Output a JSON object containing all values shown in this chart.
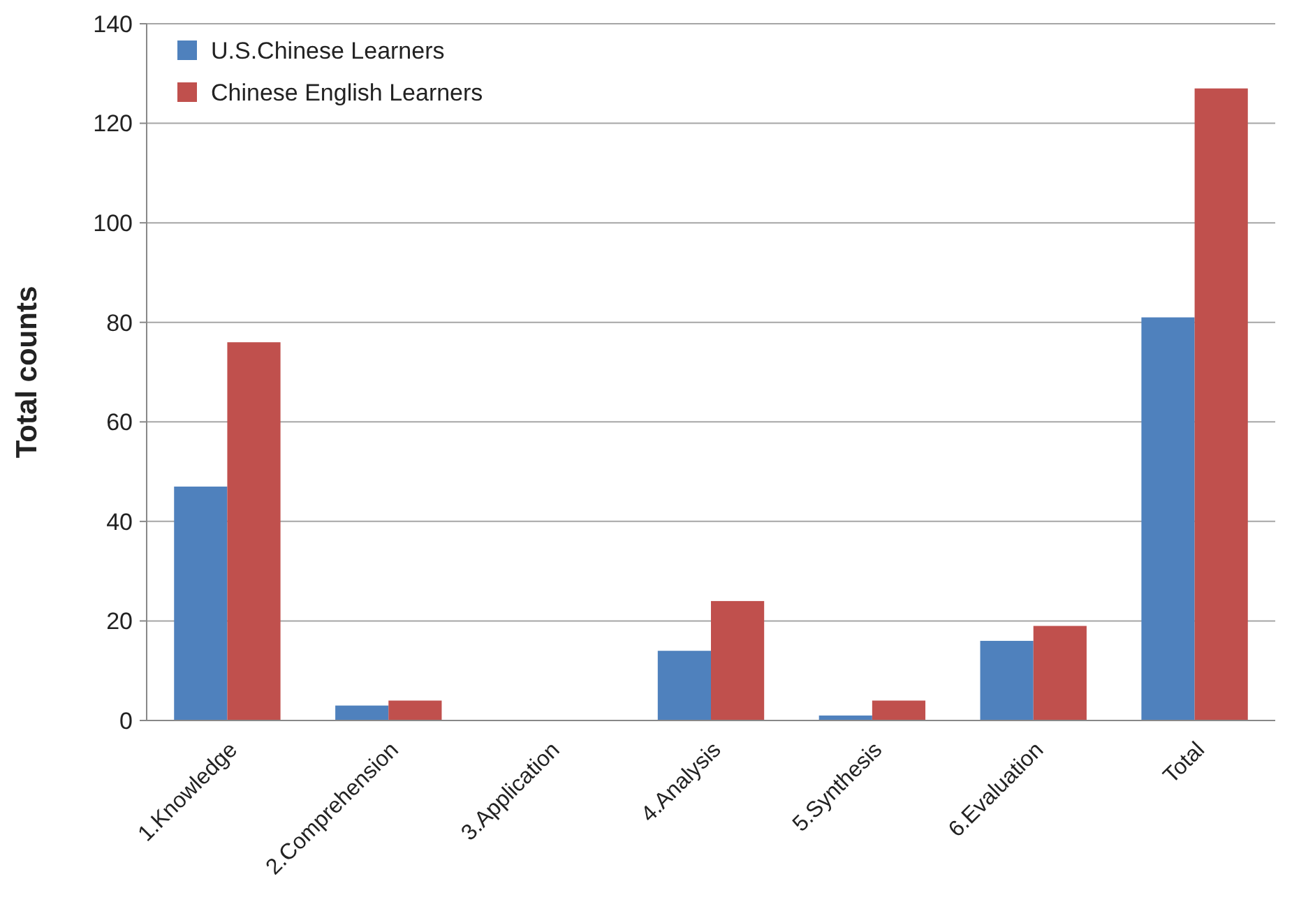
{
  "chart_data": {
    "type": "bar",
    "ylabel": "Total counts",
    "categories": [
      "1.Knowledge",
      "2.Comprehension",
      "3.Application",
      "4.Analysis",
      "5.Synthesis",
      "6.Evaluation",
      "Total"
    ],
    "series": [
      {
        "name": "U.S.Chinese Learners",
        "color": "#4f81bd",
        "values": [
          47,
          3,
          0,
          14,
          1,
          16,
          81
        ]
      },
      {
        "name": "Chinese English Learners",
        "color": "#c0504d",
        "values": [
          76,
          4,
          0,
          24,
          4,
          19,
          127
        ]
      }
    ],
    "ylim": [
      0,
      140
    ],
    "yticks": [
      0,
      20,
      40,
      60,
      80,
      100,
      120,
      140
    ],
    "grid": "y",
    "legend": "top left"
  }
}
